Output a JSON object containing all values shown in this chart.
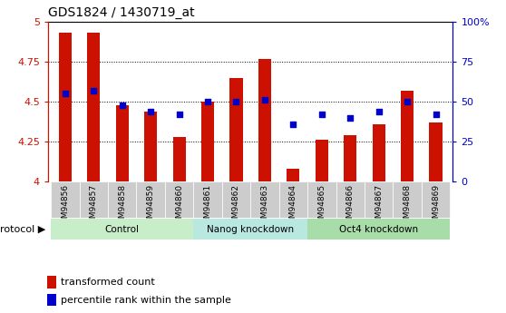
{
  "title": "GDS1824 / 1430719_at",
  "samples": [
    "GSM94856",
    "GSM94857",
    "GSM94858",
    "GSM94859",
    "GSM94860",
    "GSM94861",
    "GSM94862",
    "GSM94863",
    "GSM94864",
    "GSM94865",
    "GSM94866",
    "GSM94867",
    "GSM94868",
    "GSM94869"
  ],
  "bar_values": [
    4.93,
    4.93,
    4.48,
    4.44,
    4.28,
    4.5,
    4.65,
    4.77,
    4.08,
    4.26,
    4.29,
    4.36,
    4.57,
    4.37
  ],
  "dot_values_pct": [
    55,
    57,
    48,
    44,
    42,
    50,
    50,
    51,
    36,
    42,
    40,
    44,
    50,
    42
  ],
  "y_min": 4.0,
  "y_max": 5.0,
  "y_ticks": [
    4.0,
    4.25,
    4.5,
    4.75,
    5.0
  ],
  "y_tick_labels": [
    "4",
    "4.25",
    "4.5",
    "4.75",
    "5"
  ],
  "y2_ticks": [
    0,
    25,
    50,
    75,
    100
  ],
  "y2_tick_labels": [
    "0",
    "25",
    "50",
    "75",
    "100%"
  ],
  "groups": [
    {
      "label": "Control",
      "start": 0,
      "end": 4,
      "color": "#c8edc9"
    },
    {
      "label": "Nanog knockdown",
      "start": 5,
      "end": 8,
      "color": "#c8edc9"
    },
    {
      "label": "Oct4 knockdown",
      "start": 9,
      "end": 13,
      "color": "#c8edc9"
    }
  ],
  "bar_color": "#cc1100",
  "dot_color": "#0000cc",
  "bar_width": 0.45,
  "legend_items": [
    "transformed count",
    "percentile rank within the sample"
  ],
  "protocol_label": "protocol",
  "tick_bg_color": "#cccccc",
  "grid_line_color": "#333333",
  "top_border_color": "#000000"
}
